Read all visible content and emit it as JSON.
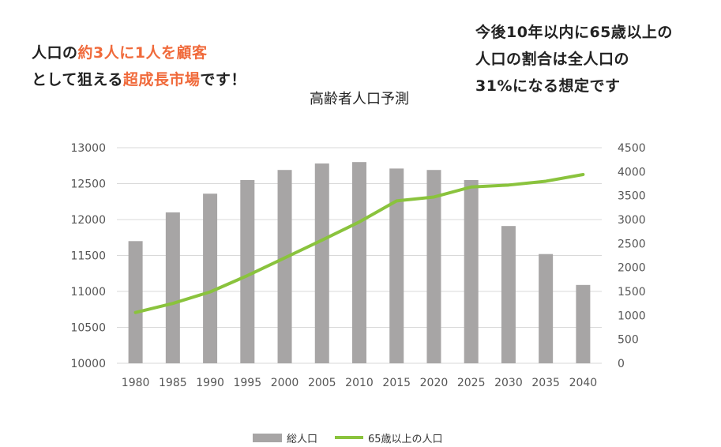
{
  "headline": {
    "line1": [
      {
        "text": "人口の",
        "accent": false
      },
      {
        "text": "約3人に1人を顧客",
        "accent": true
      }
    ],
    "line2": [
      {
        "text": "として狙える",
        "accent": false
      },
      {
        "text": "超成長市場",
        "accent": true
      },
      {
        "text": "です！",
        "accent": false
      }
    ]
  },
  "note": {
    "lines": [
      "今後10年以内に65歳以上の",
      "人口の割合は全人口の",
      "31%になる想定です"
    ]
  },
  "colors": {
    "accent": "#f06a3b",
    "bar": "#a7a5a5",
    "line": "#8ac33d"
  },
  "chart_data": {
    "type": "bar+line",
    "title": "高齢者人口予測",
    "categories": [
      "1980",
      "1985",
      "1990",
      "1995",
      "2000",
      "2005",
      "2010",
      "2015",
      "2020",
      "2025",
      "2030",
      "2035",
      "2040"
    ],
    "series": [
      {
        "name": "総人口",
        "type": "bar",
        "axis": "left",
        "values": [
          11700,
          12100,
          12360,
          12550,
          12690,
          12780,
          12800,
          12710,
          12690,
          12550,
          11910,
          11520,
          11090
        ]
      },
      {
        "name": "65歳以上の人口",
        "type": "line",
        "axis": "right",
        "values": [
          1060,
          1250,
          1490,
          1830,
          2200,
          2570,
          2950,
          3390,
          3470,
          3680,
          3720,
          3800,
          3940
        ]
      }
    ],
    "left_axis": {
      "min": 10000,
      "max": 13000,
      "ticks": [
        "10000",
        "10500",
        "11000",
        "11500",
        "12000",
        "12500",
        "13000"
      ]
    },
    "right_axis": {
      "min": 0,
      "max": 4500,
      "ticks": [
        "0",
        "500",
        "1000",
        "1500",
        "2000",
        "2500",
        "3000",
        "3500",
        "4000",
        "4500"
      ]
    },
    "grid": true,
    "legend_position": "bottom"
  }
}
